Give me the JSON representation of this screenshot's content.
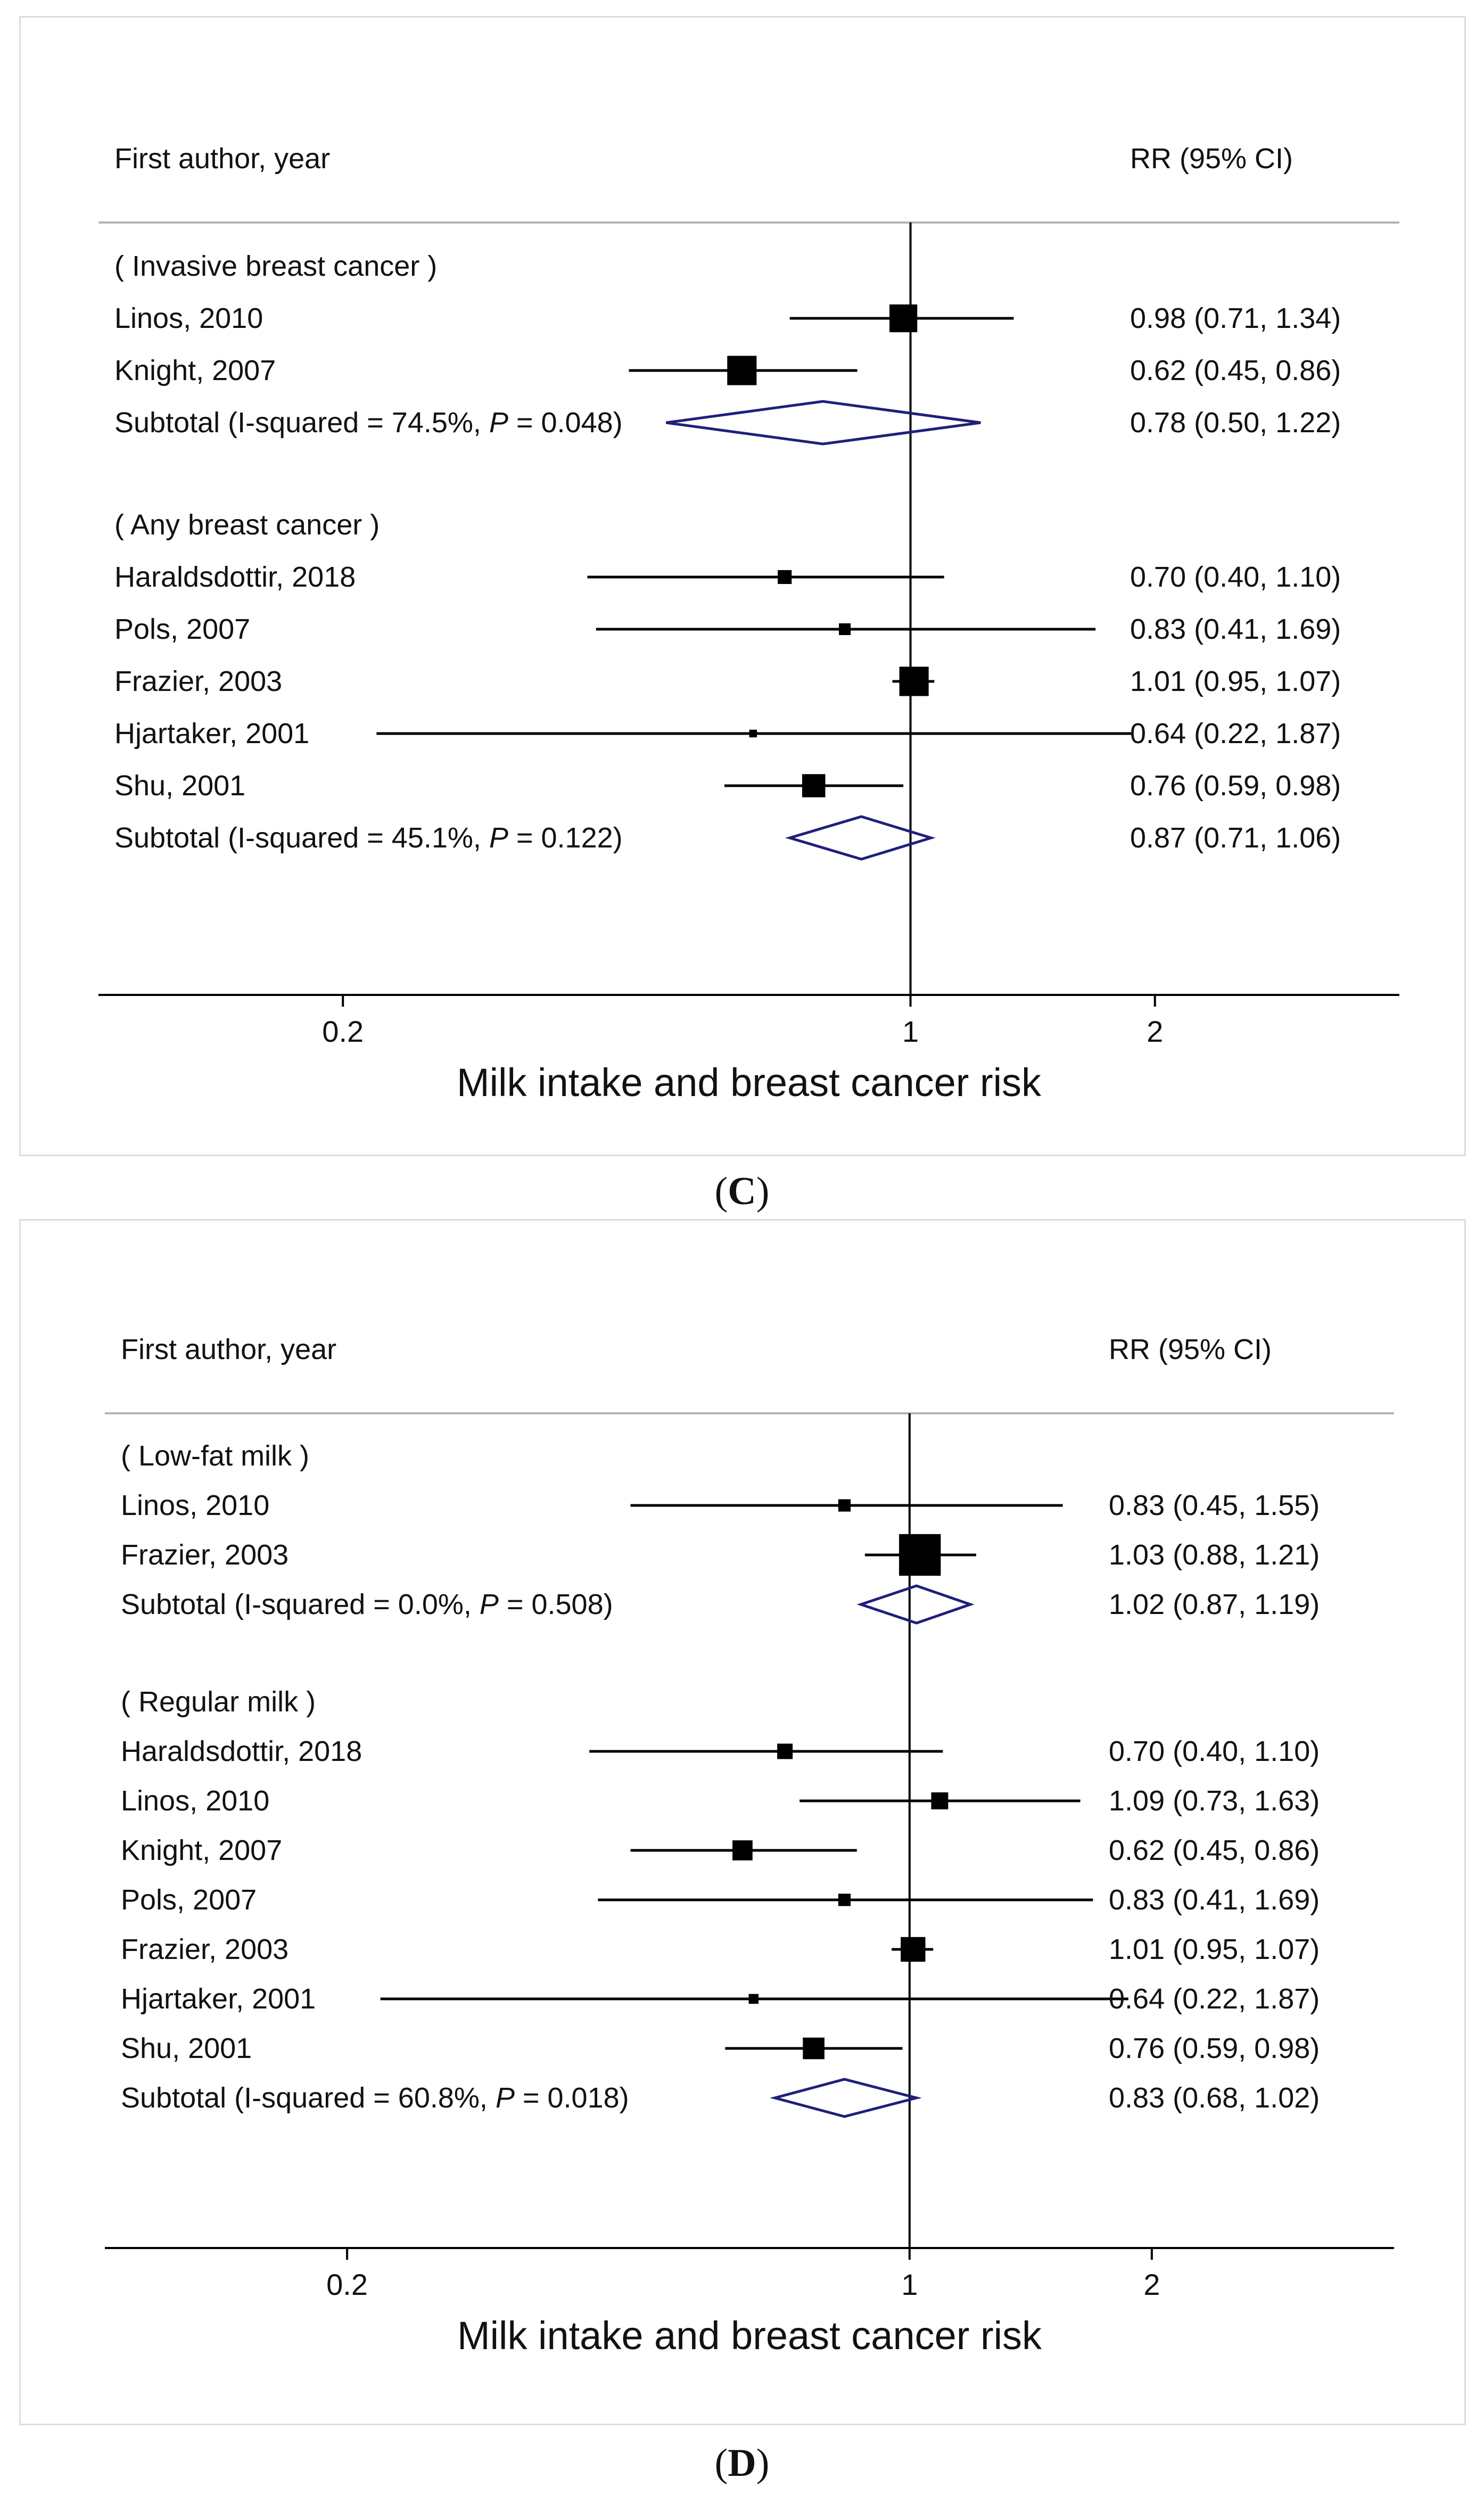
{
  "colors": {
    "line": "#000000",
    "marker": "#000000",
    "diamond": "#1f1f7a",
    "refline": "#000000",
    "divider": "#b4b4b4"
  },
  "chart_data": [
    {
      "type": "forest",
      "caption_open": "(",
      "caption_letter": "C",
      "caption_close": ")",
      "header_left": "First author, year",
      "header_right": "RR (95% CI)",
      "xlabel": "Milk intake and breast cancer risk",
      "xscale": "log",
      "xlim": [
        0.1,
        4.0
      ],
      "reference": 1,
      "ticks": [
        {
          "value": 0.2,
          "label": "0.2"
        },
        {
          "value": 1,
          "label": "1"
        },
        {
          "value": 2,
          "label": "2"
        }
      ],
      "rows": [
        {
          "kind": "group",
          "label": "( Invasive breast cancer )"
        },
        {
          "kind": "study",
          "label": "Linos, 2010",
          "rr": 0.98,
          "lo": 0.71,
          "hi": 1.34,
          "weight": 0.9,
          "rr_text": "0.98 (0.71, 1.34)"
        },
        {
          "kind": "study",
          "label": "Knight, 2007",
          "rr": 0.62,
          "lo": 0.45,
          "hi": 0.86,
          "weight": 0.95,
          "rr_text": "0.62 (0.45, 0.86)"
        },
        {
          "kind": "subtotal",
          "label_prefix": "Subtotal  (I-squared = 74.5%, ",
          "p_symbol": "P",
          "label_suffix": " = 0.048)",
          "rr": 0.78,
          "lo": 0.5,
          "hi": 1.22,
          "rr_text": "0.78 (0.50, 1.22)"
        },
        {
          "kind": "spacer"
        },
        {
          "kind": "group",
          "label": "( Any breast cancer )"
        },
        {
          "kind": "study",
          "label": "Haraldsdottir, 2018",
          "rr": 0.7,
          "lo": 0.4,
          "hi": 1.1,
          "weight": 0.45,
          "rr_text": "0.70 (0.40, 1.10)"
        },
        {
          "kind": "study",
          "label": "Pols, 2007",
          "rr": 0.83,
          "lo": 0.41,
          "hi": 1.69,
          "weight": 0.38,
          "rr_text": "0.83 (0.41, 1.69)"
        },
        {
          "kind": "study",
          "label": "Frazier, 2003",
          "rr": 1.01,
          "lo": 0.95,
          "hi": 1.07,
          "weight": 0.95,
          "rr_text": "1.01 (0.95, 1.07)"
        },
        {
          "kind": "study",
          "label": "Hjartaker, 2001",
          "rr": 0.64,
          "lo": 0.22,
          "hi": 1.87,
          "weight": 0.25,
          "rr_text": "0.64 (0.22, 1.87)"
        },
        {
          "kind": "study",
          "label": "Shu, 2001",
          "rr": 0.76,
          "lo": 0.59,
          "hi": 0.98,
          "weight": 0.75,
          "rr_text": "0.76 (0.59, 0.98)"
        },
        {
          "kind": "subtotal",
          "label_prefix": "Subtotal  (I-squared = 45.1%, ",
          "p_symbol": "P",
          "label_suffix": " = 0.122)",
          "rr": 0.87,
          "lo": 0.71,
          "hi": 1.06,
          "rr_text": "0.87 (0.71, 1.06)"
        }
      ]
    },
    {
      "type": "forest",
      "caption_open": "(",
      "caption_letter": "D",
      "caption_close": ")",
      "header_left": "First author, year",
      "header_right": "RR (95% CI)",
      "xlabel": "Milk intake and breast cancer risk",
      "xscale": "log",
      "xlim": [
        0.1,
        4.0
      ],
      "reference": 1,
      "ticks": [
        {
          "value": 0.2,
          "label": "0.2"
        },
        {
          "value": 1,
          "label": "1"
        },
        {
          "value": 2,
          "label": "2"
        }
      ],
      "rows": [
        {
          "kind": "group",
          "label": "( Low-fat milk )"
        },
        {
          "kind": "study",
          "label": "Linos, 2010",
          "rr": 0.83,
          "lo": 0.45,
          "hi": 1.55,
          "weight": 0.4,
          "rr_text": "0.83 (0.45, 1.55)"
        },
        {
          "kind": "study",
          "label": "Frazier, 2003",
          "rr": 1.03,
          "lo": 0.88,
          "hi": 1.21,
          "weight": 1.35,
          "rr_text": "1.03 (0.88, 1.21)"
        },
        {
          "kind": "subtotal",
          "label_prefix": "Subtotal  (I-squared = 0.0%, ",
          "p_symbol": "P",
          "label_suffix": " = 0.508)",
          "rr": 1.02,
          "lo": 0.87,
          "hi": 1.19,
          "rr_text": "1.02 (0.87, 1.19)"
        },
        {
          "kind": "spacer"
        },
        {
          "kind": "group",
          "label": "( Regular milk )"
        },
        {
          "kind": "study",
          "label": "Haraldsdottir, 2018",
          "rr": 0.7,
          "lo": 0.4,
          "hi": 1.1,
          "weight": 0.5,
          "rr_text": "0.70 (0.40, 1.10)"
        },
        {
          "kind": "study",
          "label": "Linos, 2010",
          "rr": 1.09,
          "lo": 0.73,
          "hi": 1.63,
          "weight": 0.55,
          "rr_text": "1.09 (0.73, 1.63)"
        },
        {
          "kind": "study",
          "label": "Knight, 2007",
          "rr": 0.62,
          "lo": 0.45,
          "hi": 0.86,
          "weight": 0.65,
          "rr_text": "0.62 (0.45, 0.86)"
        },
        {
          "kind": "study",
          "label": "Pols, 2007",
          "rr": 0.83,
          "lo": 0.41,
          "hi": 1.69,
          "weight": 0.4,
          "rr_text": "0.83 (0.41, 1.69)"
        },
        {
          "kind": "study",
          "label": "Frazier, 2003",
          "rr": 1.01,
          "lo": 0.95,
          "hi": 1.07,
          "weight": 0.8,
          "rr_text": "1.01 (0.95, 1.07)"
        },
        {
          "kind": "study",
          "label": "Hjartaker, 2001",
          "rr": 0.64,
          "lo": 0.22,
          "hi": 1.87,
          "weight": 0.32,
          "rr_text": "0.64 (0.22, 1.87)"
        },
        {
          "kind": "study",
          "label": "Shu, 2001",
          "rr": 0.76,
          "lo": 0.59,
          "hi": 0.98,
          "weight": 0.7,
          "rr_text": "0.76 (0.59, 0.98)"
        },
        {
          "kind": "subtotal",
          "label_prefix": "Subtotal  (I-squared = 60.8%, ",
          "p_symbol": "P",
          "label_suffix": " = 0.018)",
          "rr": 0.83,
          "lo": 0.68,
          "hi": 1.02,
          "rr_text": "0.83 (0.68, 1.02)"
        }
      ]
    }
  ]
}
